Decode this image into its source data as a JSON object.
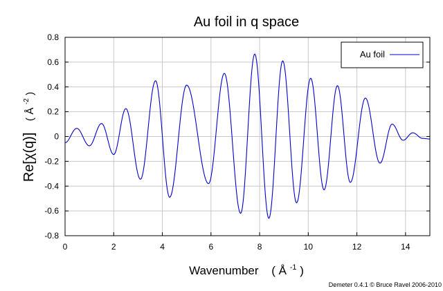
{
  "chart_data": {
    "type": "line",
    "title": "Au foil in q space",
    "xlabel": {
      "text": "Wavenumber",
      "unit_base": "Å",
      "unit_sup": "-1",
      "unit_open": "(",
      "unit_close": ")"
    },
    "ylabel": {
      "text": "Re[χ(q)]",
      "unit_base": "Å",
      "unit_sup": "-2",
      "unit_open": "(",
      "unit_close": ")"
    },
    "xlim": [
      0,
      15
    ],
    "ylim": [
      -0.8,
      0.8
    ],
    "xticks": [
      0,
      2,
      4,
      6,
      8,
      10,
      12,
      14
    ],
    "xtick_labels": [
      "0",
      "2",
      "4",
      "6",
      "8",
      "10",
      "12",
      "14"
    ],
    "yticks": [
      0.8,
      0.6,
      0.4,
      0.2,
      0,
      -0.2,
      -0.4,
      -0.6,
      -0.8
    ],
    "ytick_labels": [
      "0.8",
      "0.6",
      "0.4",
      "0.2",
      "0",
      "-0.2",
      "-0.4",
      "-0.6",
      "-0.8"
    ],
    "grid": true,
    "legend": {
      "position": "top-right",
      "entries": [
        "Au foil"
      ]
    },
    "series": [
      {
        "name": "Au foil",
        "color": "#0000cc",
        "extrema": [
          [
            0.0,
            -0.05
          ],
          [
            0.48,
            0.066
          ],
          [
            1.0,
            -0.075
          ],
          [
            1.5,
            0.105
          ],
          [
            2.0,
            -0.145
          ],
          [
            2.5,
            0.225
          ],
          [
            3.1,
            -0.345
          ],
          [
            3.72,
            0.45
          ],
          [
            4.3,
            -0.49
          ],
          [
            5.0,
            0.415
          ],
          [
            5.9,
            -0.38
          ],
          [
            6.55,
            0.51
          ],
          [
            7.22,
            -0.62
          ],
          [
            7.8,
            0.665
          ],
          [
            8.38,
            -0.66
          ],
          [
            8.95,
            0.61
          ],
          [
            9.52,
            -0.535
          ],
          [
            10.1,
            0.47
          ],
          [
            10.65,
            -0.43
          ],
          [
            11.2,
            0.41
          ],
          [
            11.73,
            -0.37
          ],
          [
            12.35,
            0.31
          ],
          [
            12.95,
            -0.215
          ],
          [
            13.45,
            0.1
          ],
          [
            13.9,
            -0.03
          ],
          [
            14.3,
            0.03
          ],
          [
            14.7,
            -0.015
          ],
          [
            15.0,
            -0.02
          ]
        ]
      }
    ]
  },
  "credit": "Demeter 0.4.1 © Bruce Ravel 2006-2010"
}
